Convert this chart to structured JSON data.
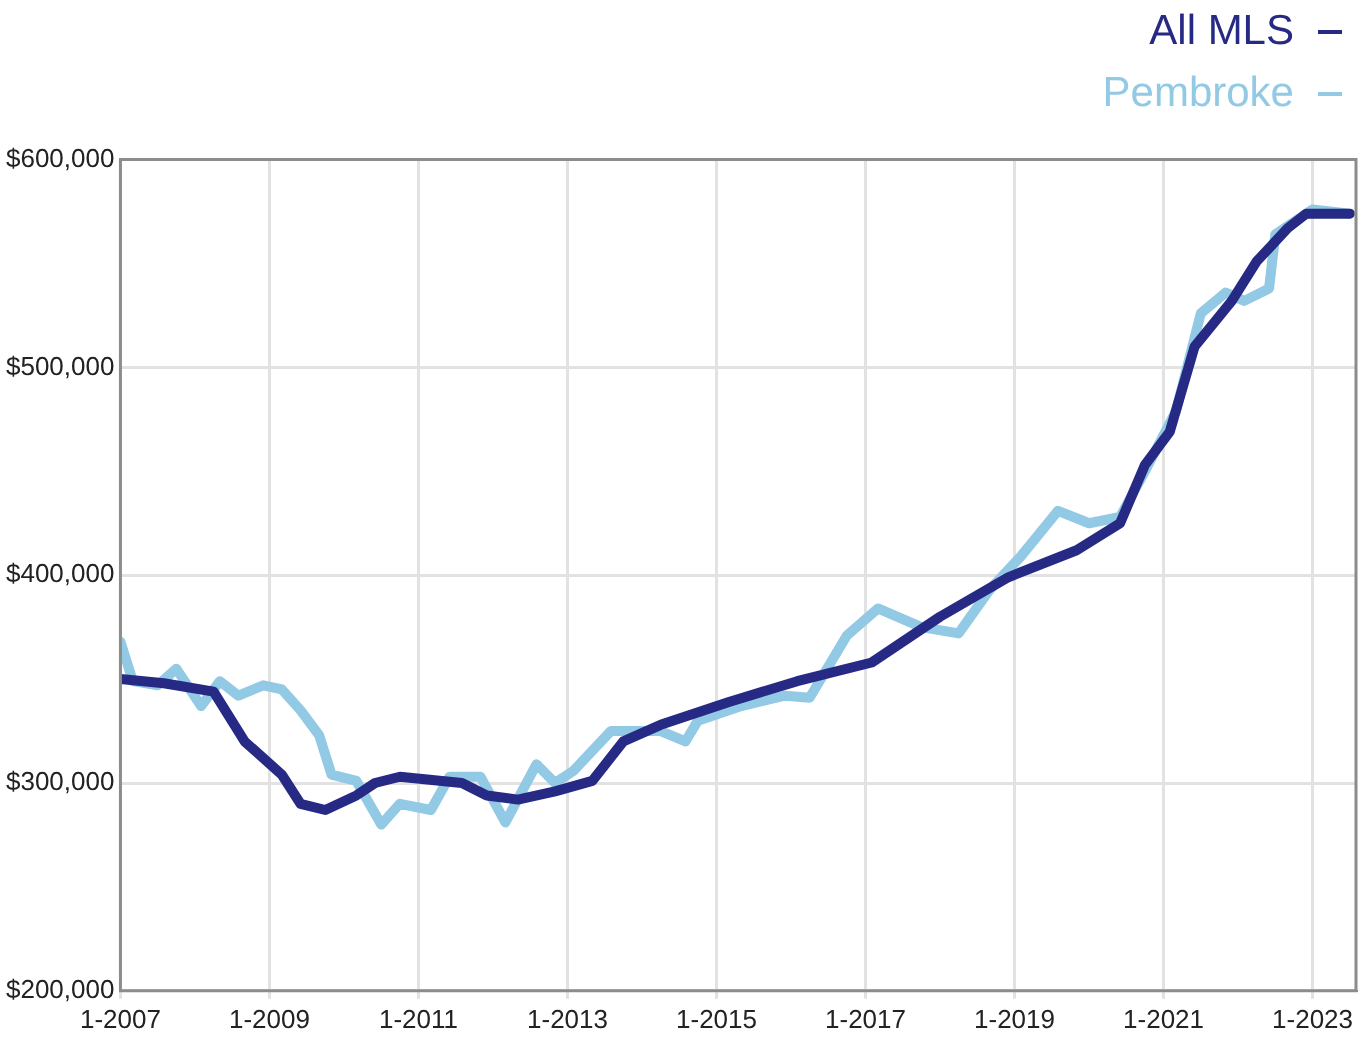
{
  "chart_data": {
    "type": "line",
    "xlim": [
      "2007-01",
      "2023-08"
    ],
    "xticks": [
      {
        "value": "2007-01",
        "label": "1-2007"
      },
      {
        "value": "2009-01",
        "label": "1-2009"
      },
      {
        "value": "2011-01",
        "label": "1-2011"
      },
      {
        "value": "2013-01",
        "label": "1-2013"
      },
      {
        "value": "2015-01",
        "label": "1-2015"
      },
      {
        "value": "2017-01",
        "label": "1-2017"
      },
      {
        "value": "2019-01",
        "label": "1-2019"
      },
      {
        "value": "2021-01",
        "label": "1-2021"
      },
      {
        "value": "2023-01",
        "label": "1-2023"
      }
    ],
    "ylim": [
      200000,
      600000
    ],
    "yticks": [
      {
        "value": 200000,
        "label": "$200,000"
      },
      {
        "value": 300000,
        "label": "$300,000"
      },
      {
        "value": 400000,
        "label": "$400,000"
      },
      {
        "value": 500000,
        "label": "$500,000"
      },
      {
        "value": 600000,
        "label": "$600,000"
      }
    ],
    "grid": true,
    "legend": "top right",
    "marker": "none",
    "line_style": "solid",
    "series": [
      {
        "name": "All MLS",
        "color": "#262a84",
        "x": [
          "2007-01",
          "2007-08",
          "2008-04",
          "2008-09",
          "2009-03",
          "2009-06",
          "2009-10",
          "2010-03",
          "2010-06",
          "2010-10",
          "2011-08",
          "2011-12",
          "2012-05",
          "2012-11",
          "2013-05",
          "2013-10",
          "2014-04",
          "2015-03",
          "2016-02",
          "2017-02",
          "2018-01",
          "2018-12",
          "2019-11",
          "2020-06",
          "2020-10",
          "2021-02",
          "2021-06",
          "2021-12",
          "2022-04",
          "2022-09",
          "2022-12",
          "2023-07"
        ],
        "values": [
          350000,
          348000,
          344000,
          320000,
          304000,
          290000,
          287000,
          294000,
          300000,
          303000,
          300000,
          294000,
          292000,
          296000,
          301000,
          320000,
          328000,
          339000,
          349000,
          358000,
          380000,
          399000,
          412000,
          425000,
          453000,
          469000,
          510000,
          532000,
          551000,
          567000,
          574000,
          574000
        ]
      },
      {
        "name": "Pembroke",
        "color": "#92c9e4",
        "x": [
          "2007-01",
          "2007-03",
          "2007-07",
          "2007-10",
          "2008-02",
          "2008-05",
          "2008-08",
          "2008-12",
          "2009-03",
          "2009-06",
          "2009-09",
          "2009-11",
          "2010-03",
          "2010-07",
          "2010-10",
          "2011-03",
          "2011-06",
          "2011-11",
          "2012-03",
          "2012-08",
          "2012-11",
          "2013-02",
          "2013-08",
          "2014-04",
          "2014-08",
          "2014-10",
          "2015-05",
          "2015-12",
          "2016-04",
          "2016-10",
          "2017-03",
          "2017-10",
          "2018-04",
          "2018-09",
          "2019-02",
          "2019-08",
          "2020-01",
          "2020-06",
          "2020-10",
          "2021-03",
          "2021-07",
          "2021-11",
          "2022-02",
          "2022-06",
          "2022-07",
          "2023-01",
          "2023-07"
        ],
        "values": [
          368000,
          349000,
          347000,
          355000,
          337000,
          349000,
          342000,
          347000,
          345000,
          335000,
          323000,
          304000,
          301000,
          280000,
          290000,
          287000,
          303000,
          303000,
          281000,
          309000,
          300000,
          306000,
          325000,
          325000,
          320000,
          330000,
          337000,
          342000,
          341000,
          371000,
          384000,
          375000,
          372000,
          393000,
          409000,
          431000,
          425000,
          428000,
          450000,
          479000,
          526000,
          536000,
          532000,
          538000,
          564000,
          576000,
          574000
        ]
      }
    ]
  }
}
